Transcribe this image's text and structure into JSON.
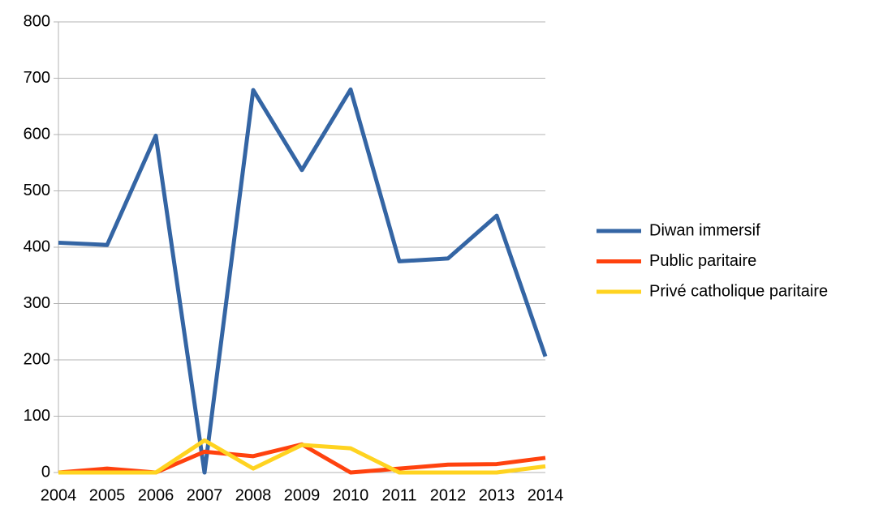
{
  "chart_data": {
    "type": "line",
    "categories": [
      "2004",
      "2005",
      "2006",
      "2007",
      "2008",
      "2009",
      "2010",
      "2011",
      "2012",
      "2013",
      "2014"
    ],
    "series": [
      {
        "name": "Diwan immersif",
        "color": "#3465a4",
        "values": [
          408,
          404,
          598,
          0,
          679,
          537,
          680,
          375,
          380,
          456,
          206
        ]
      },
      {
        "name": "Public paritaire",
        "color": "#ff420e",
        "values": [
          0,
          7,
          0,
          37,
          29,
          50,
          0,
          7,
          14,
          15,
          26
        ]
      },
      {
        "name": "Privé catholique paritaire",
        "color": "#ffd320",
        "values": [
          0,
          0,
          0,
          57,
          7,
          49,
          43,
          0,
          0,
          0,
          11
        ]
      }
    ],
    "ylim": [
      0,
      800
    ],
    "yticks": [
      0,
      100,
      200,
      300,
      400,
      500,
      600,
      700,
      800
    ],
    "grid": true,
    "legend": "right"
  }
}
